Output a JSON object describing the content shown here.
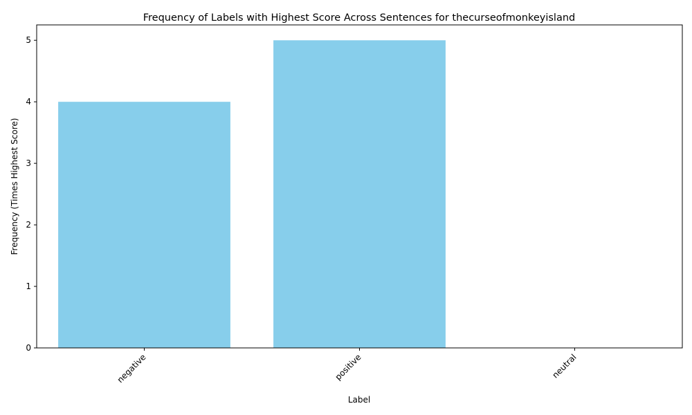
{
  "chart_data": {
    "type": "bar",
    "title": "Frequency of Labels with Highest Score Across Sentences for thecurseofmonkeyisland",
    "xlabel": "Label",
    "ylabel": "Frequency (Times Highest Score)",
    "categories": [
      "negative",
      "positive",
      "neutral"
    ],
    "values": [
      4,
      5,
      0
    ],
    "ylim": [
      0,
      5.25
    ],
    "yticks": [
      "0",
      "1",
      "2",
      "3",
      "4",
      "5"
    ],
    "bar_color": "#87ceeb",
    "grid": false,
    "legend": "none"
  }
}
